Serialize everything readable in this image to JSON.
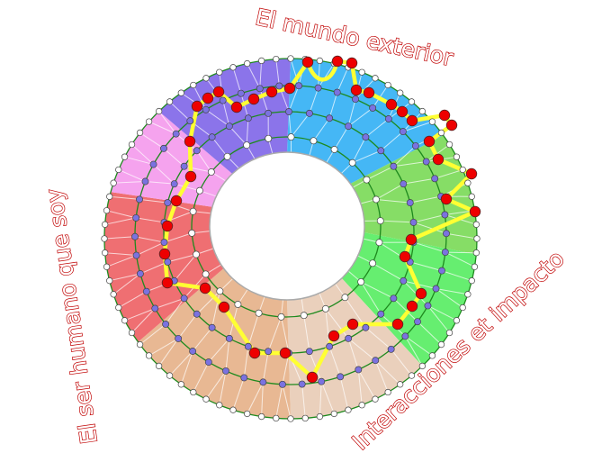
{
  "labels": {
    "top": "El mundo exterior",
    "left": "El ser humano que soy",
    "bottom_right": "Interacciones et impacto"
  },
  "colors": {
    "sector_blue": "#45b7f5",
    "sector_green_dark": "#86dd66",
    "sector_green": "#66ee70",
    "sector_beige": "#ead0bc",
    "sector_tan": "#e8b893",
    "sector_red": "#ef6f72",
    "sector_pink": "#f5a3ee",
    "sector_purple": "#8b74ea",
    "ring_line": "#1e8a1e",
    "path": "#ffff33",
    "path_node": "#ee0000",
    "mid_node": "#7b72e0",
    "edge_node": "#ffffff",
    "label": "#c00000"
  }
}
